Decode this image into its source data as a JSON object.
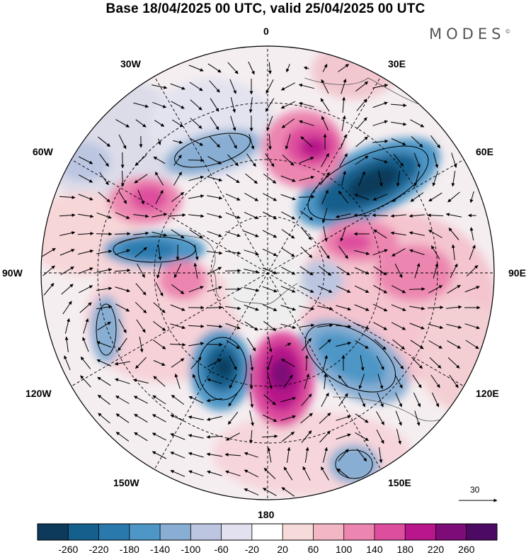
{
  "title": "Base 18/04/2025 00 UTC, valid 25/04/2025 00 UTC",
  "brand": "MODES",
  "brand_mark": "©",
  "longitude_labels": {
    "lon_0": "0",
    "lon_30e": "30E",
    "lon_60e": "60E",
    "lon_90e": "90E",
    "lon_120e": "120E",
    "lon_150e": "150E",
    "lon_180": "180",
    "lon_150w": "150W",
    "lon_120w": "120W",
    "lon_90w": "90W",
    "lon_60w": "60W",
    "lon_30w": "30W"
  },
  "reference_vector": "30",
  "colorbar": {
    "ticks": [
      "-260",
      "-220",
      "-180",
      "-140",
      "-100",
      "-60",
      "-20",
      "20",
      "60",
      "100",
      "140",
      "180",
      "220",
      "260"
    ],
    "colors": [
      "#0d3a5a",
      "#145f8c",
      "#2a79ad",
      "#4d96c6",
      "#88aed3",
      "#bcc6e1",
      "#e1e1ef",
      "#ffffff",
      "#f7dada",
      "#f3b6c4",
      "#ec86b0",
      "#de4e9e",
      "#b8168a",
      "#7d0b78",
      "#4d0a64"
    ]
  },
  "anomaly_features": [
    {
      "name": "blob-neg-60e",
      "color": "#145f8c"
    },
    {
      "name": "blob-pos-20e",
      "color": "#b8168a"
    },
    {
      "name": "blob-pos-170e",
      "color": "#7d0b78"
    },
    {
      "name": "blob-neg-150w",
      "color": "#145f8c"
    },
    {
      "name": "blob-neg-85w",
      "color": "#2a79ad"
    },
    {
      "name": "blob-pos-60w",
      "color": "#de4e9e"
    }
  ]
}
